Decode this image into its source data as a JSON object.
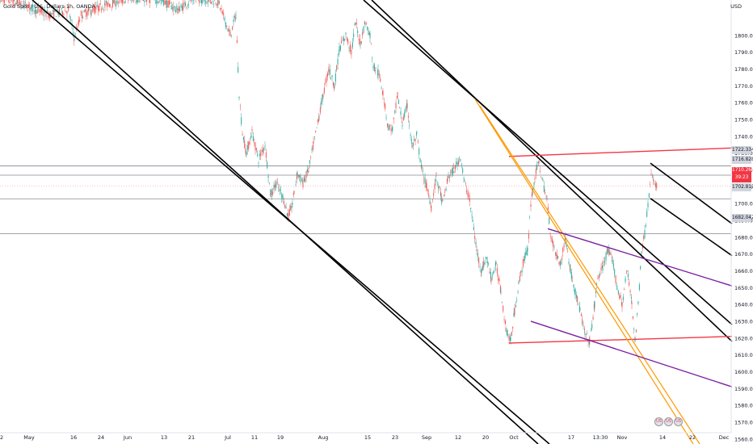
{
  "symbol_title": "Gold Spot / U.S. Dollars 1h, OANDA",
  "currency_label": "USD",
  "price_tags": [
    {
      "label": "1722.334"
    },
    {
      "label": "1716.828"
    },
    {
      "label": "1702.813"
    },
    {
      "label": "1682.042"
    }
  ],
  "current_price": {
    "price": "1710.260",
    "countdown": "39:23"
  },
  "events": [
    "US",
    "US",
    "US"
  ],
  "colors": {
    "up": "#26a69a",
    "down": "#ef5350",
    "black_channel": "#000000",
    "red_lines": "#f23645",
    "orange_channel": "#ff9800",
    "purple_lines": "#7b1fa2",
    "hlines": "#787b86",
    "price_tag_bg": "#f23645"
  },
  "chart_data": {
    "type": "candlestick",
    "title": "Gold Spot / U.S. Dollars 1h, OANDA",
    "yaxis_label": "USD",
    "ylim": [
      1557,
      1821
    ],
    "y_ticks": [
      1560,
      1570,
      1580,
      1590,
      1600,
      1610,
      1620,
      1630,
      1640,
      1650,
      1660,
      1670,
      1680,
      1690,
      1700,
      1710,
      1720,
      1730,
      1740,
      1750,
      1760,
      1770,
      1780,
      1790,
      1800
    ],
    "x_ticks": [
      "2",
      "May",
      "16",
      "24",
      "Jun",
      "13",
      "21",
      "Jul",
      "11",
      "19",
      "Aug",
      "15",
      "23",
      "Sep",
      "12",
      "20",
      "Oct",
      "17",
      "13:30",
      "Nov",
      "14",
      "22",
      "Dec"
    ],
    "price_path": [
      [
        0,
        1822
      ],
      [
        30,
        1818
      ],
      [
        60,
        1812
      ],
      [
        85,
        1815
      ],
      [
        92,
        1798
      ],
      [
        100,
        1812
      ],
      [
        130,
        1818
      ],
      [
        160,
        1822
      ],
      [
        200,
        1821
      ],
      [
        220,
        1815
      ],
      [
        240,
        1822
      ],
      [
        270,
        1820
      ],
      [
        285,
        1800
      ],
      [
        292,
        1812
      ],
      [
        296,
        1765
      ],
      [
        300,
        1742
      ],
      [
        305,
        1730
      ],
      [
        312,
        1742
      ],
      [
        320,
        1726
      ],
      [
        328,
        1735
      ],
      [
        335,
        1705
      ],
      [
        342,
        1712
      ],
      [
        350,
        1704
      ],
      [
        357,
        1692
      ],
      [
        362,
        1700
      ],
      [
        368,
        1718
      ],
      [
        375,
        1712
      ],
      [
        382,
        1720
      ],
      [
        388,
        1735
      ],
      [
        395,
        1752
      ],
      [
        400,
        1765
      ],
      [
        407,
        1780
      ],
      [
        414,
        1770
      ],
      [
        420,
        1792
      ],
      [
        428,
        1800
      ],
      [
        435,
        1790
      ],
      [
        440,
        1808
      ],
      [
        446,
        1795
      ],
      [
        452,
        1808
      ],
      [
        458,
        1800
      ],
      [
        462,
        1782
      ],
      [
        468,
        1778
      ],
      [
        474,
        1766
      ],
      [
        480,
        1746
      ],
      [
        486,
        1744
      ],
      [
        492,
        1764
      ],
      [
        498,
        1748
      ],
      [
        504,
        1758
      ],
      [
        510,
        1734
      ],
      [
        516,
        1740
      ],
      [
        522,
        1720
      ],
      [
        528,
        1710
      ],
      [
        534,
        1698
      ],
      [
        540,
        1716
      ],
      [
        548,
        1700
      ],
      [
        555,
        1716
      ],
      [
        562,
        1720
      ],
      [
        570,
        1728
      ],
      [
        575,
        1712
      ],
      [
        580,
        1705
      ],
      [
        585,
        1690
      ],
      [
        590,
        1672
      ],
      [
        596,
        1660
      ],
      [
        602,
        1668
      ],
      [
        608,
        1656
      ],
      [
        614,
        1663
      ],
      [
        620,
        1648
      ],
      [
        626,
        1626
      ],
      [
        632,
        1618
      ],
      [
        637,
        1636
      ],
      [
        642,
        1652
      ],
      [
        648,
        1666
      ],
      [
        653,
        1672
      ],
      [
        657,
        1700
      ],
      [
        662,
        1716
      ],
      [
        667,
        1724
      ],
      [
        672,
        1712
      ],
      [
        677,
        1702
      ],
      [
        682,
        1680
      ],
      [
        688,
        1670
      ],
      [
        694,
        1664
      ],
      [
        700,
        1680
      ],
      [
        706,
        1660
      ],
      [
        712,
        1648
      ],
      [
        718,
        1636
      ],
      [
        724,
        1622
      ],
      [
        730,
        1618
      ],
      [
        736,
        1640
      ],
      [
        740,
        1656
      ],
      [
        746,
        1662
      ],
      [
        752,
        1672
      ],
      [
        758,
        1666
      ],
      [
        764,
        1650
      ],
      [
        770,
        1640
      ],
      [
        776,
        1660
      ],
      [
        782,
        1642
      ],
      [
        786,
        1618
      ],
      [
        790,
        1640
      ],
      [
        794,
        1672
      ],
      [
        798,
        1682
      ],
      [
        802,
        1700
      ],
      [
        806,
        1716
      ],
      [
        810,
        1712
      ],
      [
        814,
        1710
      ]
    ],
    "drawings": [
      {
        "name": "long-black-channel-upper",
        "color": "black",
        "points": [
          [
            55,
            1821
          ],
          [
            666,
            1557
          ]
        ]
      },
      {
        "name": "long-black-channel-lower",
        "color": "black",
        "points": [
          [
            40,
            1821
          ],
          [
            680,
            1557
          ]
        ]
      },
      {
        "name": "mid-black-channel-upper",
        "color": "black",
        "points": [
          [
            450,
            1821
          ],
          [
            906,
            1628
          ]
        ]
      },
      {
        "name": "mid-black-channel-lower",
        "color": "black",
        "points": [
          [
            460,
            1821
          ],
          [
            906,
            1618
          ]
        ]
      },
      {
        "name": "short-black-channel-upper",
        "color": "black",
        "points": [
          [
            805,
            1724
          ],
          [
            906,
            1688
          ]
        ]
      },
      {
        "name": "short-black-channel-lower",
        "color": "black",
        "points": [
          [
            805,
            1703
          ],
          [
            906,
            1669
          ]
        ]
      },
      {
        "name": "red-line-upper",
        "color": "red",
        "points": [
          [
            630,
            1728
          ],
          [
            906,
            1733
          ]
        ]
      },
      {
        "name": "red-line-lower",
        "color": "red",
        "points": [
          [
            630,
            1617
          ],
          [
            906,
            1621
          ]
        ]
      },
      {
        "name": "orange-channel-left",
        "color": "orange",
        "points": [
          [
            588,
            1762
          ],
          [
            858,
            1557
          ]
        ]
      },
      {
        "name": "orange-channel-right",
        "color": "orange",
        "points": [
          [
            594,
            1758
          ],
          [
            866,
            1557
          ]
        ]
      },
      {
        "name": "purple-line-upper",
        "color": "purple",
        "points": [
          [
            678,
            1685
          ],
          [
            906,
            1651
          ]
        ]
      },
      {
        "name": "purple-line-lower",
        "color": "purple",
        "points": [
          [
            657,
            1630
          ],
          [
            906,
            1591
          ]
        ]
      }
    ],
    "horizontal_levels": [
      1722.334,
      1716.828,
      1710.26,
      1702.813,
      1682.042
    ]
  }
}
